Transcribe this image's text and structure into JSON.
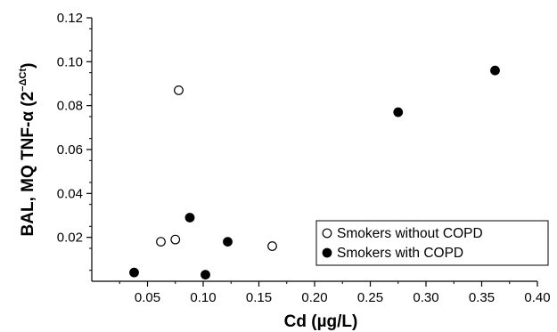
{
  "chart_data": {
    "type": "scatter",
    "xlabel": "Cd (µg/L)",
    "ylabel_main": "BAL, MQ TNF-α (2",
    "ylabel_sup": "−ΔCt",
    "ylabel_close": ")",
    "xlim": [
      0,
      0.4
    ],
    "ylim": [
      0,
      0.12
    ],
    "xticks": [
      0.05,
      0.1,
      0.15,
      0.2,
      0.25,
      0.3,
      0.35,
      0.4
    ],
    "xtick_labels": [
      "0.05",
      "0.10",
      "0.15",
      "0.20",
      "0.25",
      "0.30",
      "0.35",
      "0.40"
    ],
    "yticks": [
      0.02,
      0.04,
      0.06,
      0.08,
      0.1,
      0.12
    ],
    "ytick_labels": [
      "0.02",
      "0.04",
      "0.06",
      "0.08",
      "0.10",
      "0.12"
    ],
    "grid": false,
    "legend_position": "bottom-right",
    "series": [
      {
        "name": "Smokers without COPD",
        "marker": "open-circle",
        "color": "#000000",
        "x": [
          0.062,
          0.075,
          0.078,
          0.162
        ],
        "y": [
          0.018,
          0.019,
          0.087,
          0.016
        ]
      },
      {
        "name": "Smokers with COPD",
        "marker": "filled-circle",
        "color": "#000000",
        "x": [
          0.038,
          0.088,
          0.102,
          0.122,
          0.275,
          0.362
        ],
        "y": [
          0.004,
          0.029,
          0.003,
          0.018,
          0.077,
          0.096
        ]
      }
    ]
  }
}
